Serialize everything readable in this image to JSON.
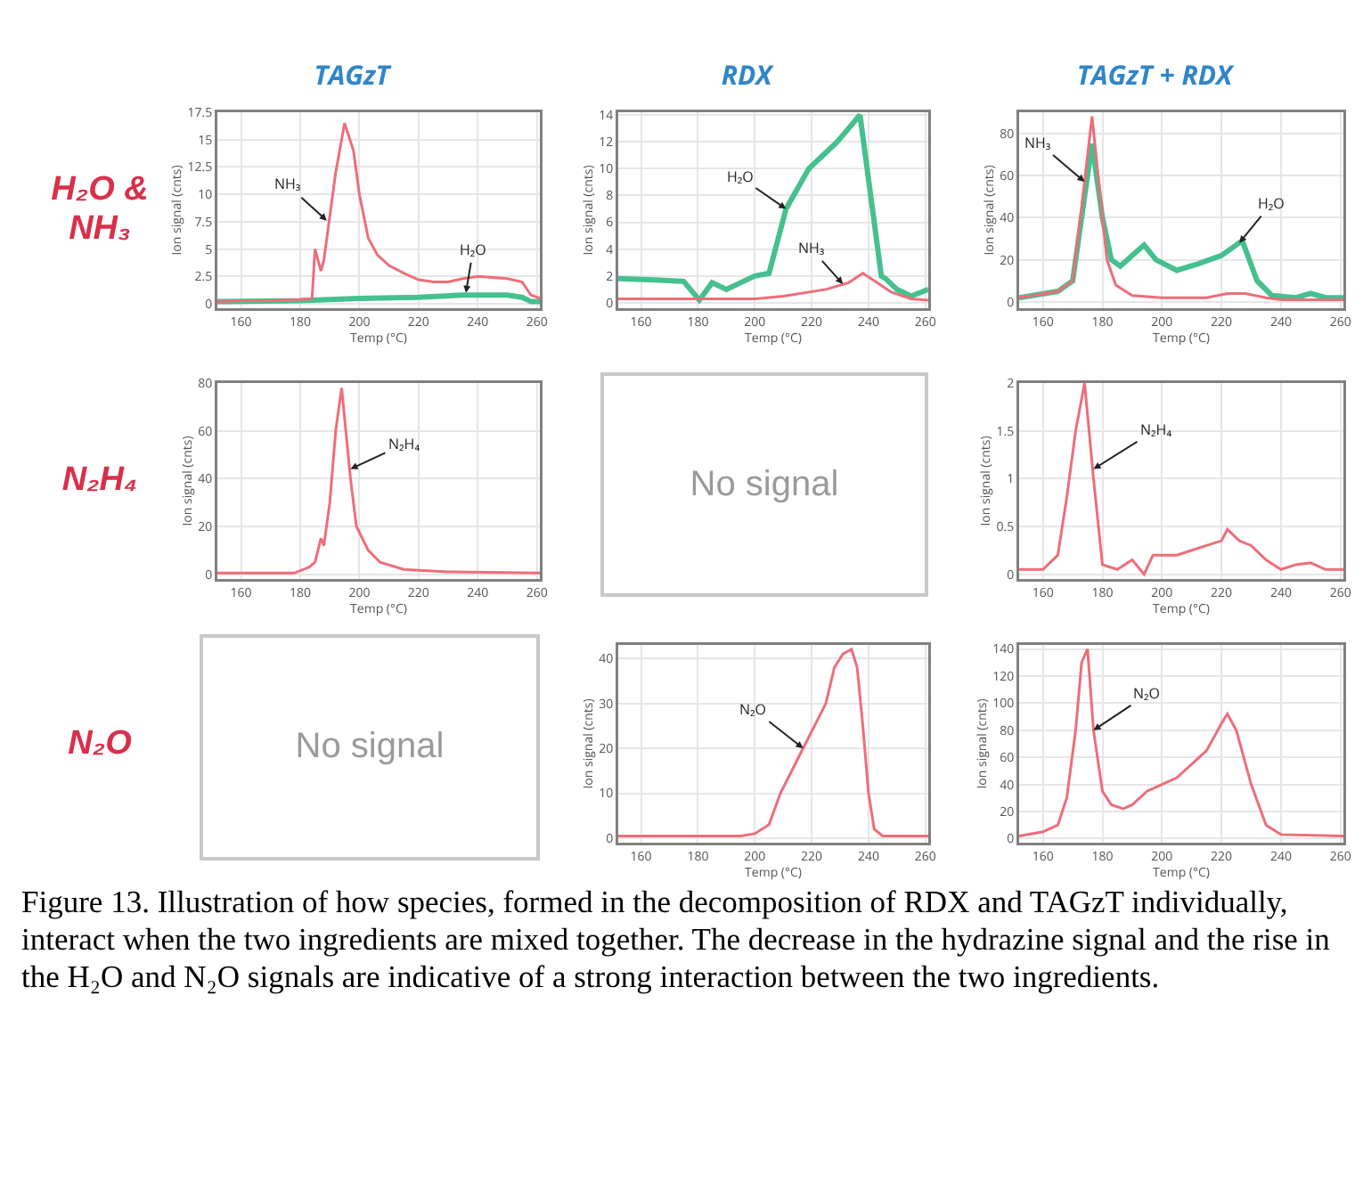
{
  "chart_data": [
    {
      "type": "line",
      "title": "TAGzT",
      "xlabel": "Temp (°C)",
      "ylabel": "Ion signal (cnts)",
      "xlim": [
        152,
        261
      ],
      "xticks": [
        160,
        180,
        200,
        220,
        240,
        260
      ],
      "ylim": [
        -0.4,
        17.5
      ],
      "yticks": [
        0,
        2.5,
        5,
        7.5,
        10,
        12.5,
        15,
        17.5
      ],
      "grid": true,
      "series": [
        {
          "color": "#45c08e",
          "x": [
            152,
            180,
            200,
            220,
            235,
            250,
            255,
            258,
            261
          ],
          "values": [
            0.2,
            0.3,
            0.5,
            0.6,
            0.8,
            0.8,
            0.6,
            0.2,
            0.2
          ]
        },
        {
          "color": "#ee6d7a",
          "x": [
            152,
            160,
            170,
            180,
            184,
            185,
            186,
            187,
            188,
            190,
            192,
            195,
            198,
            200,
            203,
            206,
            210,
            215,
            220,
            225,
            230,
            235,
            240,
            245,
            250,
            255,
            258,
            261
          ],
          "values": [
            0.2,
            0.3,
            0.3,
            0.4,
            0.5,
            5,
            4,
            3,
            4,
            8,
            12,
            16.5,
            14,
            10,
            6,
            4.5,
            3.5,
            2.8,
            2.2,
            2,
            2,
            2.3,
            2.5,
            2.4,
            2.3,
            2,
            0.8,
            0.5
          ]
        }
      ],
      "annotations": [
        "H₂O & NH₃",
        {
          "text": "NH₃",
          "x": 189,
          "y": 7.6
        },
        {
          "text": "H₂O",
          "x": 236,
          "y": 1
        }
      ]
    },
    {
      "type": "line",
      "title": "RDX",
      "xlabel": "Temp (°C)",
      "ylabel": "Ion signal (cnts)",
      "xlim": [
        152,
        261
      ],
      "xticks": [
        160,
        180,
        200,
        220,
        240,
        260
      ],
      "ylim": [
        -0.4,
        14.2
      ],
      "yticks": [
        0,
        2,
        4,
        6,
        8,
        10,
        12,
        14
      ],
      "grid": true,
      "series": [
        {
          "color": "#45c08e",
          "x": [
            152,
            165,
            175,
            180.5,
            185,
            190,
            195,
            200,
            205,
            211,
            219,
            224,
            229,
            233,
            237,
            244.5,
            246,
            250,
            255,
            261
          ],
          "values": [
            1.8,
            1.7,
            1.6,
            0.2,
            1.5,
            1,
            1.5,
            2,
            2.2,
            7,
            10,
            11,
            12,
            13,
            14,
            2,
            1.8,
            1,
            0.5,
            1
          ]
        },
        {
          "color": "#ee6d7a",
          "x": [
            152,
            175,
            200,
            210,
            225,
            233,
            238,
            243,
            248,
            255,
            261
          ],
          "values": [
            0.3,
            0.3,
            0.3,
            0.5,
            1,
            1.5,
            2.2,
            1.5,
            0.8,
            0.3,
            0.2
          ]
        }
      ],
      "annotations": [
        {
          "text": "H₂O",
          "x": 211,
          "y": 7
        },
        {
          "text": "NH₃",
          "x": 231,
          "y": 1.4
        }
      ]
    },
    {
      "type": "line",
      "title": "TAGzT + RDX",
      "xlabel": "Temp (°C)",
      "ylabel": "Ion signal (cnts)",
      "xlim": [
        152,
        261
      ],
      "xticks": [
        160,
        180,
        200,
        220,
        240,
        260
      ],
      "ylim": [
        -3,
        90
      ],
      "yticks": [
        0,
        20,
        40,
        60,
        80
      ],
      "grid": true,
      "series": [
        {
          "color": "#45c08e",
          "x": [
            152,
            165,
            170,
            173,
            176.5,
            180,
            183,
            186,
            190,
            194,
            198,
            205,
            212,
            220,
            226,
            227,
            232,
            237,
            245,
            250,
            255,
            261
          ],
          "values": [
            2,
            5,
            10,
            40,
            75,
            40,
            20,
            17,
            22,
            27,
            20,
            15,
            18,
            22,
            28,
            29,
            10,
            3,
            2,
            4,
            2,
            2
          ]
        },
        {
          "color": "#ee6d7a",
          "x": [
            152,
            165,
            170,
            173,
            176.5,
            181.5,
            184.5,
            190,
            200,
            215,
            222,
            228,
            235,
            240,
            261
          ],
          "values": [
            2,
            5,
            10,
            45,
            88,
            20,
            8,
            3,
            2,
            2,
            4,
            4,
            2,
            1,
            1
          ]
        }
      ],
      "annotations": [
        {
          "text": "NH₃",
          "x": 174,
          "y": 57
        },
        {
          "text": "H₂O",
          "x": 226,
          "y": 28
        }
      ]
    },
    {
      "type": "line",
      "xlabel": "Temp (°C)",
      "ylabel": "Ion signal (cnts)",
      "xlim": [
        152,
        261
      ],
      "xticks": [
        160,
        180,
        200,
        220,
        240,
        260
      ],
      "ylim": [
        -2,
        80
      ],
      "yticks": [
        0,
        20,
        40,
        60,
        80
      ],
      "grid": true,
      "series": [
        {
          "color": "#ee6d7a",
          "x": [
            152,
            170,
            178,
            183,
            185,
            187,
            188,
            190,
            192,
            194,
            197,
            199,
            203,
            207,
            215,
            230,
            261
          ],
          "values": [
            0.5,
            0.5,
            0.5,
            3,
            5,
            15,
            12,
            30,
            60,
            78,
            40,
            20,
            10,
            5,
            2,
            1,
            0.5
          ]
        }
      ],
      "annotations": [
        "N₂H₄",
        {
          "text": "N₂H₄",
          "x": 197,
          "y": 44
        }
      ]
    },
    {
      "type": "other",
      "annotations": [
        "No signal"
      ]
    },
    {
      "type": "line",
      "xlabel": "Temp (°C)",
      "ylabel": "Ion signal (cnts)",
      "xlim": [
        152,
        261
      ],
      "xticks": [
        160,
        180,
        200,
        220,
        240,
        260
      ],
      "ylim": [
        -0.05,
        2
      ],
      "yticks": [
        0,
        0.5,
        1,
        1.5,
        2
      ],
      "grid": true,
      "series": [
        {
          "color": "#ee6d7a",
          "x": [
            152,
            160,
            165,
            168,
            171,
            174,
            177,
            180,
            185,
            190,
            194,
            197,
            205,
            210,
            215,
            220,
            222,
            226,
            230,
            235,
            240,
            245,
            250,
            255,
            261
          ],
          "values": [
            0.05,
            0.05,
            0.2,
            0.8,
            1.5,
            2,
            1,
            0.1,
            0.05,
            0.15,
            0,
            0.2,
            0.2,
            0.25,
            0.3,
            0.35,
            0.47,
            0.35,
            0.3,
            0.15,
            0.05,
            0.1,
            0.12,
            0.05,
            0.05
          ]
        }
      ],
      "annotations": [
        {
          "text": "N₂H₄",
          "x": 177,
          "y": 1.1
        }
      ]
    },
    {
      "type": "other",
      "annotations": [
        "N₂O",
        "No signal"
      ]
    },
    {
      "type": "line",
      "xlabel": "Temp (°C)",
      "ylabel": "Ion signal (cnts)",
      "xlim": [
        152,
        261
      ],
      "xticks": [
        160,
        180,
        200,
        220,
        240,
        260
      ],
      "ylim": [
        -1,
        43
      ],
      "yticks": [
        0,
        10,
        20,
        30,
        40
      ],
      "grid": true,
      "series": [
        {
          "color": "#ee6d7a",
          "x": [
            152,
            180,
            195,
            200,
            205,
            209,
            213,
            217,
            221,
            225,
            228,
            231,
            234,
            236,
            238,
            240,
            242,
            245,
            261
          ],
          "values": [
            0.5,
            0.5,
            0.5,
            1,
            3,
            10,
            15,
            20,
            25,
            30,
            38,
            41,
            42,
            38,
            25,
            10,
            2,
            0.5,
            0.5
          ]
        }
      ],
      "annotations": [
        {
          "text": "N₂O",
          "x": 217,
          "y": 20
        }
      ]
    },
    {
      "type": "line",
      "xlabel": "Temp (°C)",
      "ylabel": "Ion signal (cnts)",
      "xlim": [
        152,
        261
      ],
      "xticks": [
        160,
        180,
        200,
        220,
        240,
        260
      ],
      "ylim": [
        -3,
        143
      ],
      "yticks": [
        0,
        20,
        40,
        60,
        80,
        100,
        120,
        140
      ],
      "grid": true,
      "series": [
        {
          "color": "#ee6d7a",
          "x": [
            152,
            160,
            165,
            168,
            171,
            173,
            175,
            177,
            180,
            183,
            187,
            190,
            195,
            200,
            205,
            210,
            215,
            220,
            222,
            225,
            230,
            235,
            240,
            261
          ],
          "values": [
            2,
            5,
            10,
            30,
            80,
            130,
            140,
            80,
            35,
            25,
            22,
            25,
            35,
            40,
            45,
            55,
            65,
            85,
            92,
            80,
            40,
            10,
            3,
            2
          ]
        }
      ],
      "annotations": [
        {
          "text": "N₂O",
          "x": 177,
          "y": 80
        },
        "Figure 13.  Illustration of how species, formed in the decomposition of RDX and TAGzT individually, interact when the two ingredients are mixed together.  The decrease in the hydrazine signal and the rise in the H₂O and N₂O signals are indicative of a strong interaction between the two ingredients."
      ]
    }
  ]
}
